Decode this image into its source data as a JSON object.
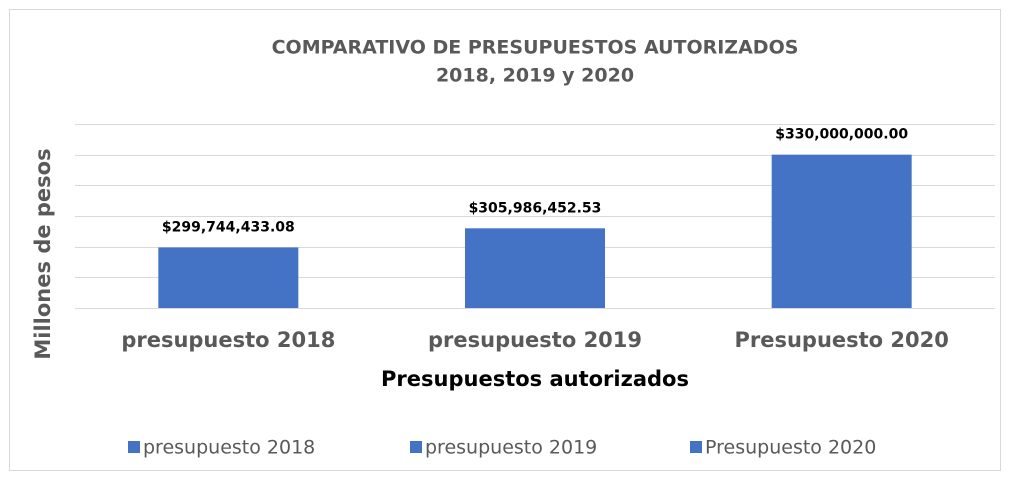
{
  "chart_data": {
    "type": "bar",
    "title": [
      "COMPARATIVO DE PRESUPUESTOS AUTORIZADOS",
      "2018, 2019 y  2020"
    ],
    "x_label": "Presupuestos autorizados",
    "y_label": "Millones de pesos",
    "categories": [
      "presupuesto 2018",
      "presupuesto 2019",
      "Presupuesto 2020"
    ],
    "values": [
      299744433.08,
      305986452.53,
      330000000.0
    ],
    "value_labels": [
      "$299,744,433.08",
      "$305,986,452.53",
      "$330,000,000.00"
    ],
    "color": "#4472c4",
    "ylim": [
      280000000,
      340000000
    ],
    "yticks": [
      280000000,
      290000000,
      300000000,
      310000000,
      320000000,
      330000000,
      340000000
    ],
    "grid": true,
    "legend": "bottom"
  }
}
